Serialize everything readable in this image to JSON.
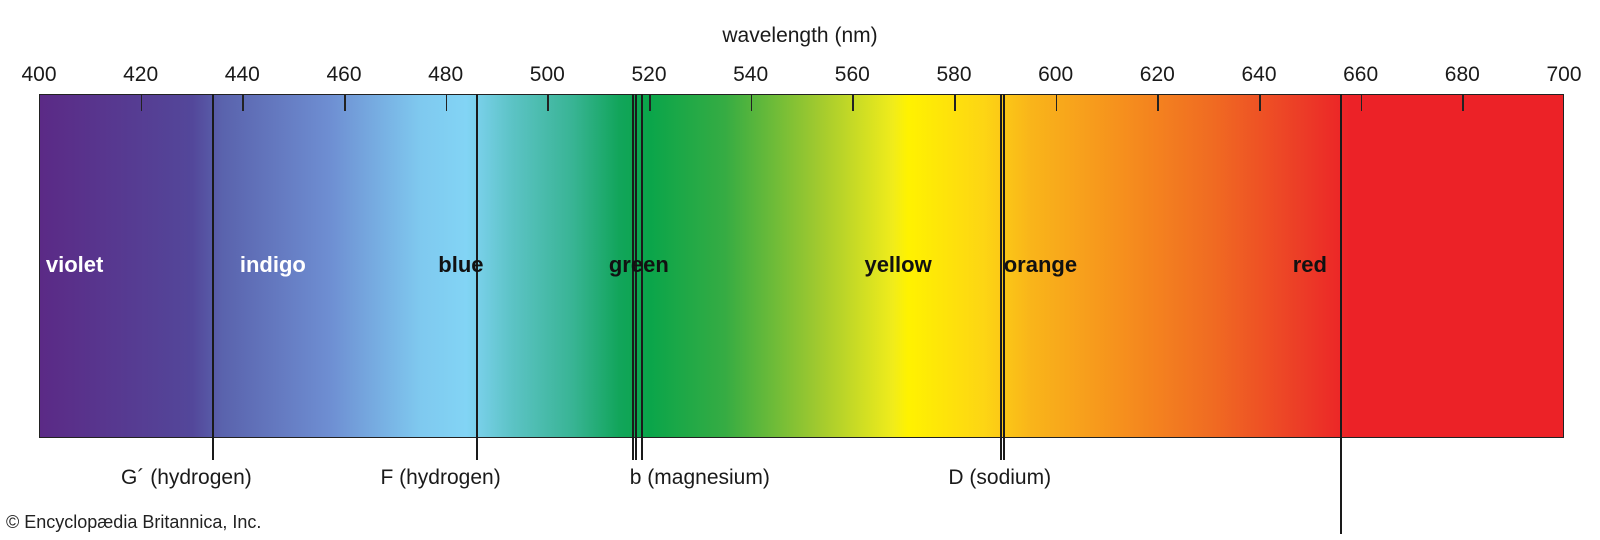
{
  "chart_data": {
    "type": "spectrum",
    "xlabel": "wavelength (nm)",
    "xlim": [
      400,
      700
    ],
    "ticks": [
      400,
      420,
      440,
      460,
      480,
      500,
      520,
      540,
      560,
      580,
      600,
      620,
      640,
      660,
      680,
      700
    ],
    "bands": [
      {
        "name": "violet",
        "center": 407
      },
      {
        "name": "indigo",
        "center": 446
      },
      {
        "name": "blue",
        "center": 483
      },
      {
        "name": "green",
        "center": 518
      },
      {
        "name": "yellow",
        "center": 569
      },
      {
        "name": "orange",
        "center": 597
      },
      {
        "name": "red",
        "center": 650
      }
    ],
    "fraunhofer_lines": [
      {
        "label": "G´ (hydrogen)",
        "wavelengths": [
          434
        ],
        "label_at": 429
      },
      {
        "label": "F (hydrogen)",
        "wavelengths": [
          486
        ],
        "label_at": 479
      },
      {
        "label": "b (magnesium)",
        "wavelengths": [
          516.7,
          517.3,
          518.4
        ],
        "label_at": 530
      },
      {
        "label": "D (sodium)",
        "wavelengths": [
          589.0,
          589.6
        ],
        "label_at": 589
      },
      {
        "label": "",
        "wavelengths": [
          656
        ],
        "label_at": 656
      }
    ]
  },
  "credit": "© Encyclopædia Britannica, Inc."
}
